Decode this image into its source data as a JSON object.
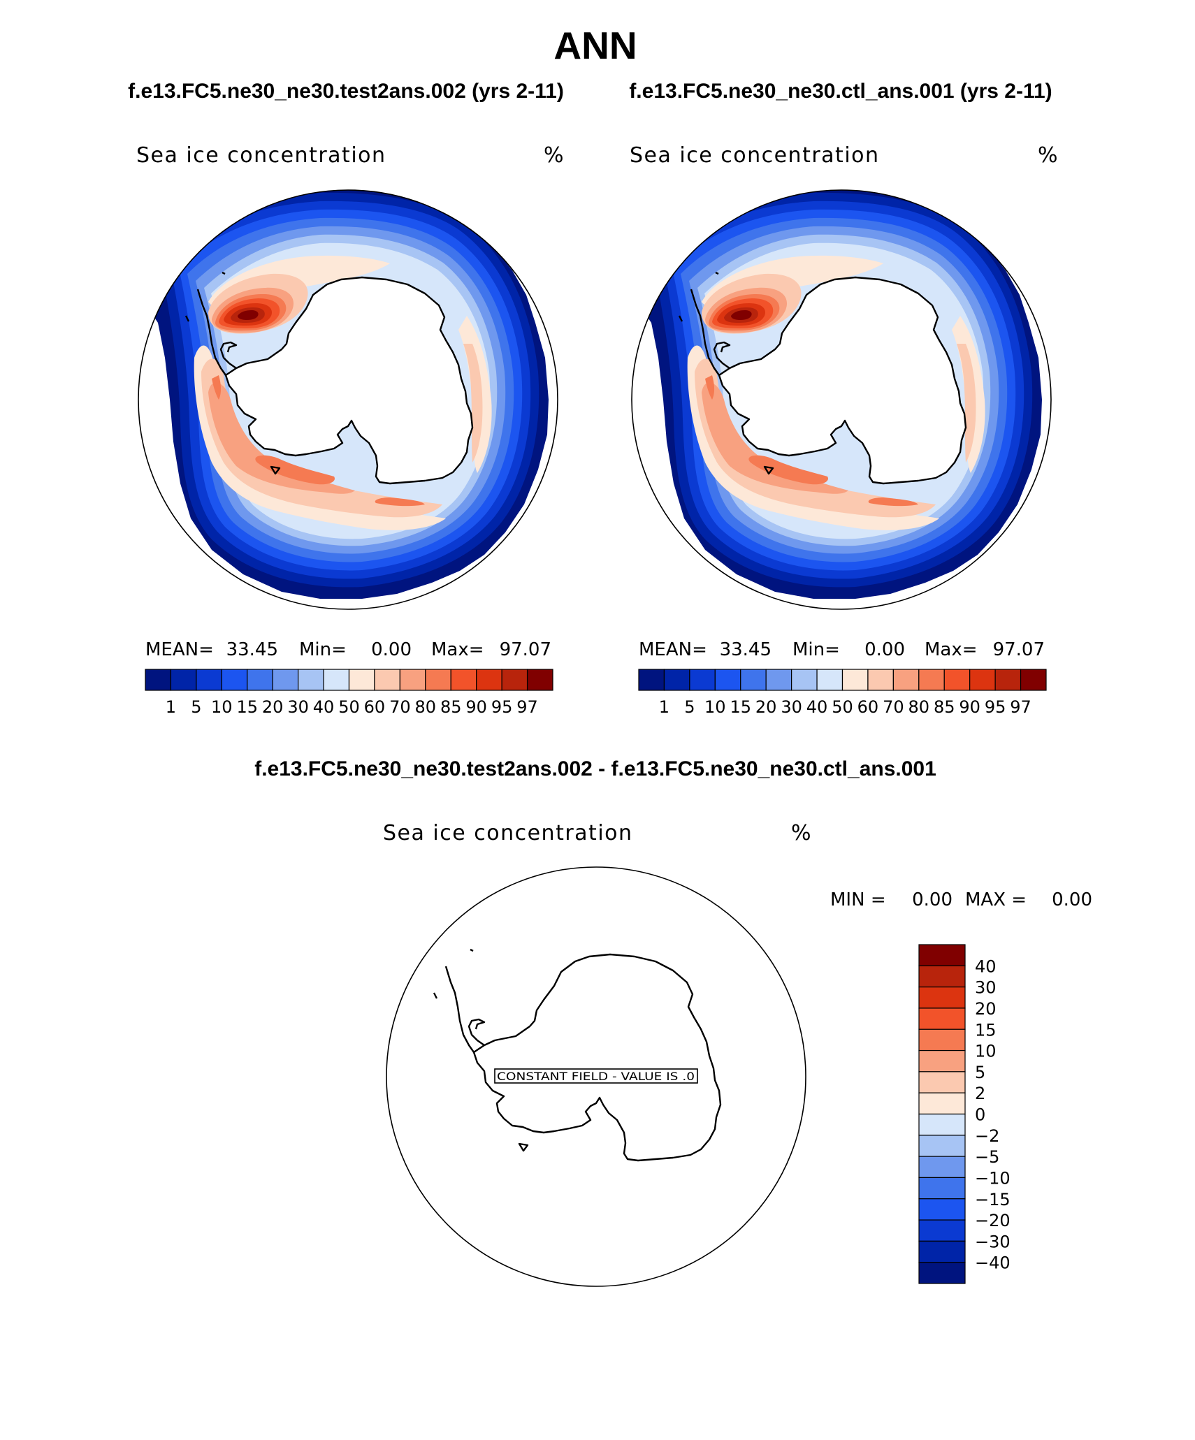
{
  "title": "ANN",
  "panels": [
    {
      "case_label": "f.e13.FC5.ne30_ne30.test2ans.002 (yrs 2-11)",
      "variable": "Sea ice concentration",
      "units": "%",
      "stats": {
        "mean_label": "MEAN=",
        "mean": "33.45",
        "min_label": "Min=",
        "min": "0.00",
        "max_label": "Max=",
        "max": "97.07"
      }
    },
    {
      "case_label": "f.e13.FC5.ne30_ne30.ctl_ans.001 (yrs 2-11)",
      "variable": "Sea ice concentration",
      "units": "%",
      "stats": {
        "mean_label": "MEAN=",
        "mean": "33.45",
        "min_label": "Min=",
        "min": "0.00",
        "max_label": "Max=",
        "max": "97.07"
      }
    }
  ],
  "diff": {
    "case_label": "f.e13.FC5.ne30_ne30.test2ans.002 - f.e13.FC5.ne30_ne30.ctl_ans.001",
    "variable": "Sea ice concentration",
    "units": "%",
    "minmax": {
      "min_label": "MIN =",
      "min": "0.00",
      "max_label": "MAX =",
      "max": "0.00"
    },
    "constant_field_text": "CONSTANT FIELD - VALUE IS .0"
  },
  "colorbar": {
    "colors": [
      "#00147f",
      "#0024a8",
      "#0b3ad2",
      "#1c55f0",
      "#3f74ec",
      "#6f98ee",
      "#a7c4f4",
      "#d6e6fa",
      "#fde8d8",
      "#fbc9b0",
      "#f8a180",
      "#f57a52",
      "#f2532a",
      "#dc3410",
      "#b8240c",
      "#800000"
    ],
    "labels": [
      "1",
      "5",
      "10",
      "15",
      "20",
      "30",
      "40",
      "50",
      "60",
      "70",
      "80",
      "85",
      "90",
      "95",
      "97"
    ]
  },
  "diff_colorbar": {
    "colors": [
      "#800000",
      "#b8240c",
      "#dc3410",
      "#f2532a",
      "#f57a52",
      "#f8a180",
      "#fbc9b0",
      "#fde8d8",
      "#d6e6fa",
      "#a7c4f4",
      "#6f98ee",
      "#3f74ec",
      "#1c55f0",
      "#0b3ad2",
      "#0024a8",
      "#00147f"
    ],
    "labels": [
      "40",
      "30",
      "20",
      "15",
      "10",
      "5",
      "2",
      "0",
      "−2",
      "−5",
      "−10",
      "−15",
      "−20",
      "−30",
      "−40"
    ]
  }
}
